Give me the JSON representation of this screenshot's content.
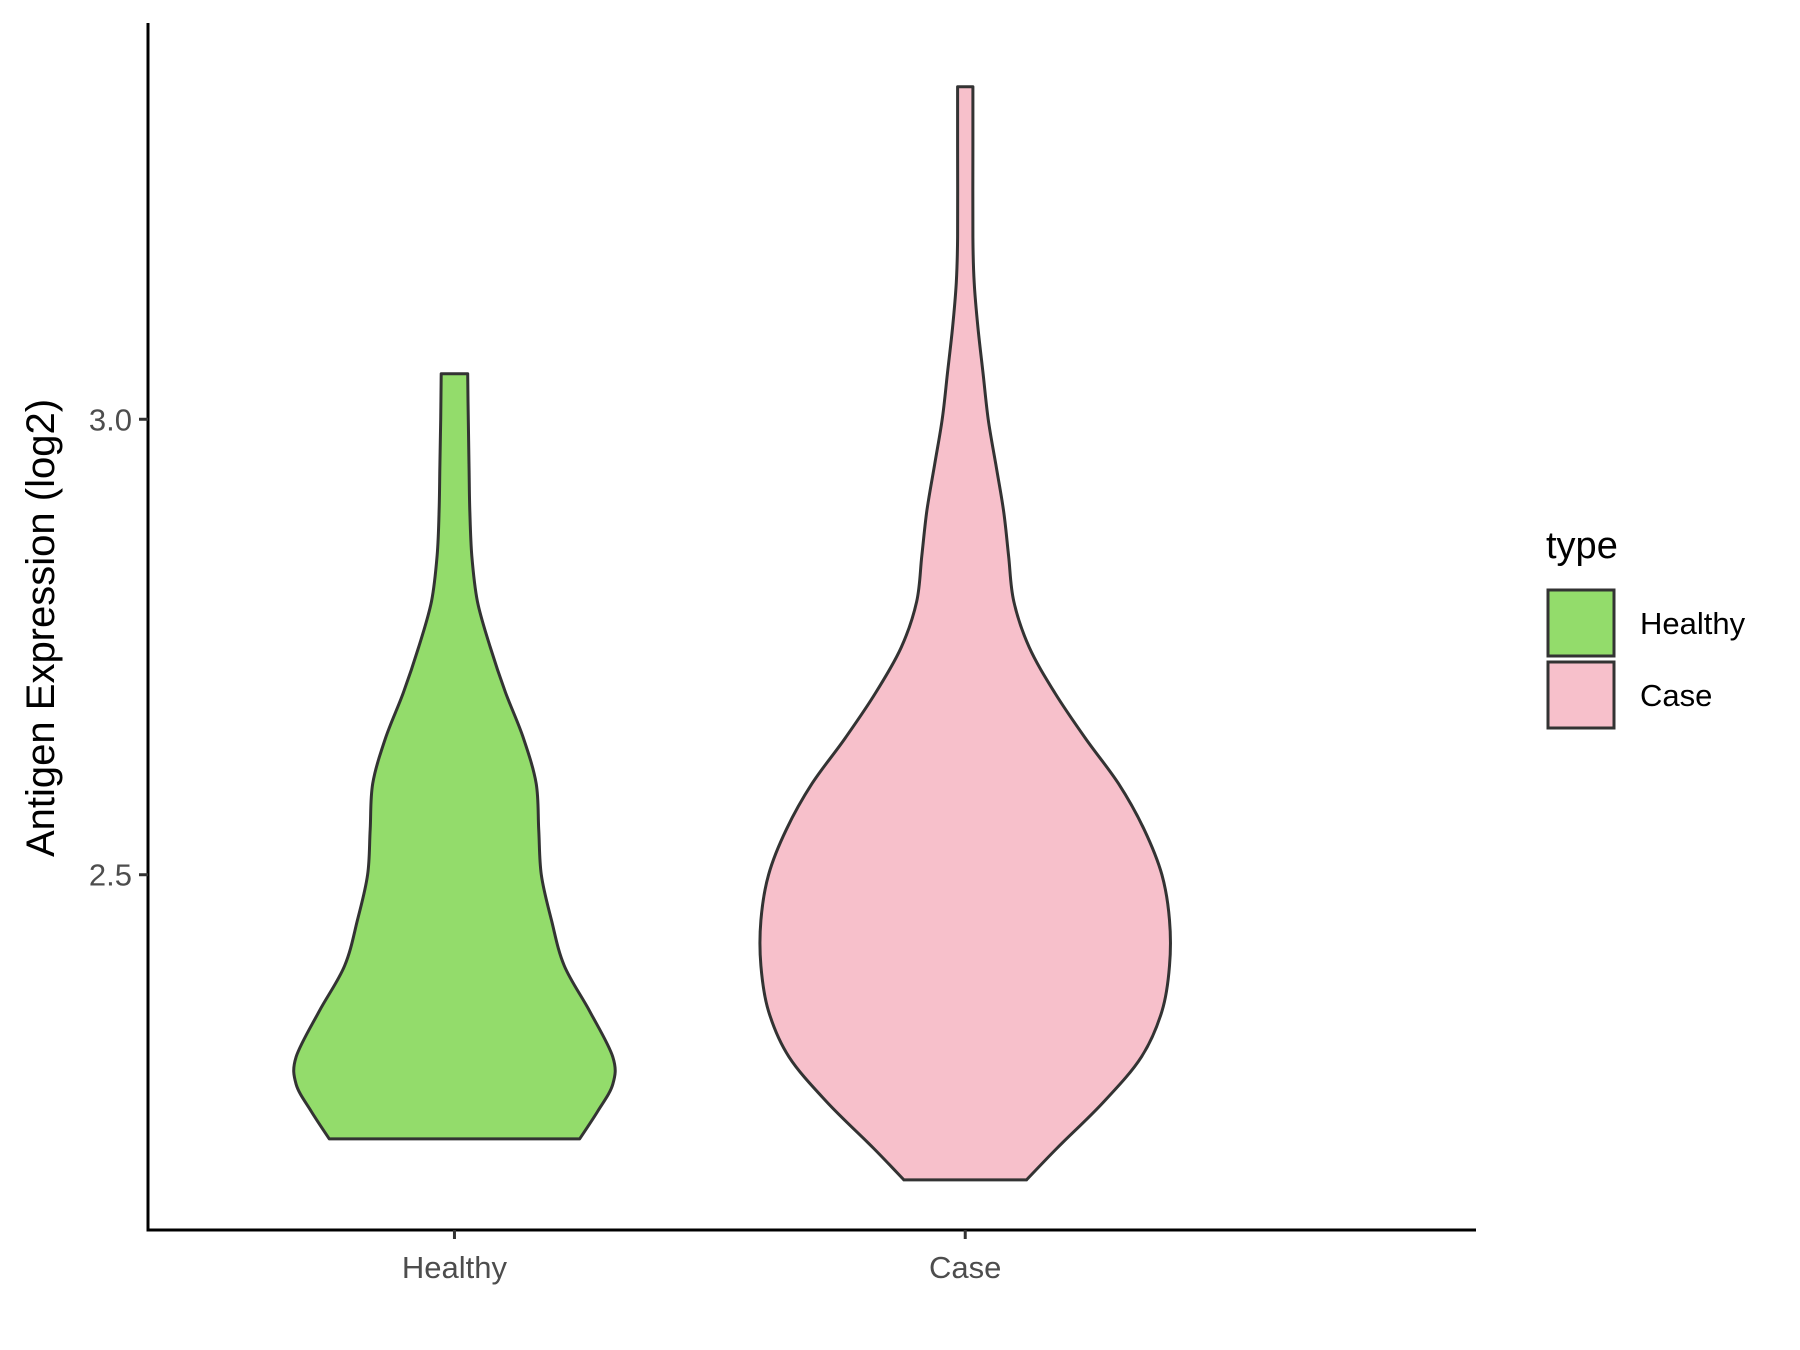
{
  "chart_data": {
    "type": "violin",
    "title": "",
    "xlabel": "",
    "ylabel": "Antigen Expression (log2)",
    "yticks": [
      2.5,
      3.0
    ],
    "ytick_labels": [
      "2.5",
      "3.0"
    ],
    "ylim": [
      2.11,
      3.435
    ],
    "categories": [
      "Healthy",
      "Case"
    ],
    "grid": false,
    "legend": {
      "title": "type",
      "position": "right",
      "entries": [
        {
          "label": "Healthy",
          "color": "#93DC6B"
        },
        {
          "label": "Case",
          "color": "#F7C0CB"
        }
      ]
    },
    "outline_color": "#333333",
    "series": [
      {
        "name": "Healthy",
        "color": "#93DC6B",
        "min": 2.21,
        "max": 3.05,
        "density": [
          [
            2.21,
            0.49
          ],
          [
            2.24,
            0.56
          ],
          [
            2.27,
            0.62
          ],
          [
            2.3,
            0.62
          ],
          [
            2.35,
            0.53
          ],
          [
            2.4,
            0.43
          ],
          [
            2.45,
            0.38
          ],
          [
            2.5,
            0.34
          ],
          [
            2.55,
            0.33
          ],
          [
            2.6,
            0.32
          ],
          [
            2.65,
            0.27
          ],
          [
            2.7,
            0.2
          ],
          [
            2.75,
            0.14
          ],
          [
            2.8,
            0.09
          ],
          [
            2.85,
            0.068
          ],
          [
            2.9,
            0.06
          ],
          [
            2.95,
            0.057
          ],
          [
            3.0,
            0.054
          ],
          [
            3.05,
            0.052
          ]
        ]
      },
      {
        "name": "Case",
        "color": "#F7C0CB",
        "min": 2.165,
        "max": 3.365,
        "density": [
          [
            2.165,
            0.24
          ],
          [
            2.2,
            0.36
          ],
          [
            2.25,
            0.54
          ],
          [
            2.3,
            0.69
          ],
          [
            2.35,
            0.77
          ],
          [
            2.4,
            0.8
          ],
          [
            2.45,
            0.8
          ],
          [
            2.5,
            0.77
          ],
          [
            2.55,
            0.7
          ],
          [
            2.6,
            0.6
          ],
          [
            2.65,
            0.47
          ],
          [
            2.7,
            0.35
          ],
          [
            2.75,
            0.25
          ],
          [
            2.8,
            0.19
          ],
          [
            2.85,
            0.17
          ],
          [
            2.9,
            0.15
          ],
          [
            2.95,
            0.12
          ],
          [
            3.0,
            0.09
          ],
          [
            3.05,
            0.07
          ],
          [
            3.1,
            0.05
          ],
          [
            3.15,
            0.035
          ],
          [
            3.2,
            0.03
          ],
          [
            3.3,
            0.03
          ],
          [
            3.365,
            0.03
          ]
        ]
      }
    ]
  }
}
